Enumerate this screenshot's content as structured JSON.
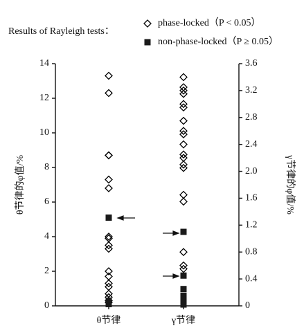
{
  "chart_data": {
    "type": "strip",
    "legend_title": "Results of Rayleigh tests：",
    "categories": [
      "θ节律",
      "γ节律"
    ],
    "category_axis": [
      "y",
      "y2"
    ],
    "ylabel": "θ节律的φ值/%",
    "y2label": "γ节律的φ值/%",
    "ylim": [
      0,
      14
    ],
    "yticks": [
      0,
      2,
      4,
      6,
      8,
      10,
      12,
      14
    ],
    "y2lim": [
      0,
      3.6
    ],
    "y2ticks": [
      0,
      0.4,
      0.8,
      1.2,
      1.6,
      {
        "value": 2,
        "label": "2.0"
      },
      2.4,
      2.8,
      3.2,
      3.6
    ],
    "series": [
      {
        "name": "phase-locked（P < 0.05）",
        "marker": "diamond",
        "color": "#000000",
        "values": [
          [
            13.3,
            12.3,
            8.7,
            8.7,
            7.3,
            6.8,
            4.0,
            3.9,
            3.5,
            3.3,
            2.0,
            1.7,
            1.3,
            1.1,
            0.7,
            0.5,
            0.3,
            0.2
          ],
          [
            3.4,
            3.25,
            3.2,
            3.15,
            3.0,
            2.95,
            2.75,
            2.6,
            2.55,
            2.4,
            2.25,
            2.2,
            2.1,
            2.05,
            1.65,
            1.55,
            0.8,
            0.6,
            0.55
          ]
        ]
      },
      {
        "name": "non-phase-locked（P ≥ 0.05）",
        "marker": "square",
        "color": "#1a1a1a",
        "values": [
          [
            5.1,
            0.3,
            0.1
          ],
          [
            1.1,
            0.45,
            0.25,
            0.15,
            0.1,
            0.05,
            0.02
          ]
        ]
      }
    ]
  }
}
